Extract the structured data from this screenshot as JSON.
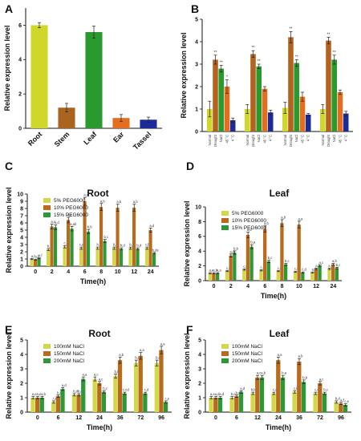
{
  "colors": {
    "yellow": "#cfd82a",
    "brown": "#b3631f",
    "green": "#2a9a2f",
    "orange": "#e46d1f",
    "blue": "#1d2b9a",
    "peg_light": "#d2d84a",
    "peg_mid": "#b86b1f",
    "peg_dark": "#2f9836"
  },
  "chart_data": [
    {
      "panel": "A",
      "type": "bar",
      "ylabel": "Relative expression level",
      "ylim": [
        0,
        7
      ],
      "yticks": [
        0,
        2,
        4,
        6
      ],
      "categories": [
        "Root",
        "Stem",
        "Leaf",
        "Ear",
        "Tassel"
      ],
      "values": [
        6.0,
        1.2,
        5.6,
        0.6,
        0.5
      ],
      "errors": [
        0.15,
        0.25,
        0.35,
        0.2,
        0.15
      ],
      "bar_colors": [
        "#cfd82a",
        "#a9641f",
        "#2a9a2f",
        "#e46d1f",
        "#1d2b9a"
      ]
    },
    {
      "panel": "B",
      "type": "bar",
      "ylabel": "Relative expression level",
      "ylim": [
        0,
        5
      ],
      "yticks": [
        0,
        1,
        2,
        3,
        4,
        5
      ],
      "categories": [
        "Normal",
        "Drought",
        "NaCl",
        "45 °C",
        "4 °C"
      ],
      "bar_colors": [
        "#cfd82a",
        "#b3631f",
        "#2a9a2f",
        "#e46d1f",
        "#1d2b9a"
      ],
      "groups": [
        {
          "values": [
            1.0,
            3.2,
            2.8,
            2.0,
            0.5
          ],
          "errors": [
            0.35,
            0.2,
            0.15,
            0.3,
            0.1
          ],
          "marks": [
            "",
            "**",
            "**",
            "*",
            ""
          ]
        },
        {
          "values": [
            1.0,
            3.45,
            2.9,
            1.9,
            0.85
          ],
          "errors": [
            0.2,
            0.15,
            0.1,
            0.1,
            0.1
          ],
          "marks": [
            "",
            "**",
            "**",
            "",
            ""
          ]
        },
        {
          "values": [
            1.05,
            4.2,
            3.05,
            1.55,
            0.75
          ],
          "errors": [
            0.25,
            0.25,
            0.15,
            0.2,
            0.05
          ],
          "marks": [
            "",
            "**",
            "**",
            "",
            ""
          ]
        },
        {
          "values": [
            1.0,
            4.05,
            3.2,
            1.75,
            0.8
          ],
          "errors": [
            0.2,
            0.15,
            0.2,
            0.1,
            0.1
          ],
          "marks": [
            "",
            "**",
            "**",
            "",
            ""
          ]
        }
      ]
    },
    {
      "panel": "C",
      "type": "bar",
      "title": "Root",
      "xlabel": "Time(h)",
      "ylabel": "Relative expression level",
      "ylim": [
        0,
        10
      ],
      "yticks": [
        0,
        1,
        2,
        3,
        4,
        5,
        6,
        7,
        8,
        9,
        10
      ],
      "categories": [
        "0",
        "2",
        "4",
        "6",
        "8",
        "10",
        "12",
        "24"
      ],
      "series": [
        {
          "name": "5% PEG6000",
          "values": [
            1.0,
            2.3,
            2.7,
            2.5,
            2.5,
            2.5,
            2.5,
            2.5
          ],
          "labels": [
            "a,f",
            "b,b",
            "c,b",
            "c,ab",
            "b,c",
            "b,a",
            "b,a",
            "c,bc"
          ]
        },
        {
          "name": "10% PEG6000",
          "values": [
            0.9,
            5.5,
            6.4,
            9.0,
            8.2,
            8.1,
            8.1,
            5.0
          ],
          "labels": [
            "a,f",
            "a,c",
            "a,c",
            "a,a",
            "a,b",
            "a,b",
            "a,b",
            "a,d"
          ]
        },
        {
          "name": "15% PEG6000",
          "values": [
            1.1,
            5.4,
            5.2,
            4.8,
            3.5,
            2.4,
            2.4,
            1.8
          ],
          "labels": [
            "a,f",
            "a,d",
            "a,ab",
            "b,b",
            "b,c",
            "b,d",
            "b,d",
            "b,de"
          ]
        }
      ],
      "series_colors": [
        "#d2d84a",
        "#b86b1f",
        "#2f9836"
      ]
    },
    {
      "panel": "D",
      "type": "bar",
      "title": "Leaf",
      "xlabel": "Time(h)",
      "ylabel": "Relative expression level",
      "ylim": [
        0,
        10
      ],
      "yticks": [
        0,
        2,
        4,
        6,
        8,
        10
      ],
      "categories": [
        "0",
        "2",
        "4",
        "6",
        "8",
        "10",
        "12",
        "24"
      ],
      "series": [
        {
          "name": "5% PEG6000",
          "values": [
            1.0,
            1.3,
            1.5,
            1.4,
            1.3,
            1.2,
            1.1,
            1.6
          ],
          "labels": [
            "a,e",
            "c,e",
            "c,d",
            "c,c",
            "c,c",
            "c,d",
            "a,f",
            "a,b"
          ]
        },
        {
          "name": "10% PEG6000",
          "values": [
            1.0,
            3.4,
            6.2,
            7.0,
            7.8,
            7.6,
            1.6,
            2.2
          ],
          "labels": [
            "a,b",
            "a,d",
            "a,d",
            "a,b",
            "a,b",
            "a,a",
            "a,f",
            "a,b"
          ]
        },
        {
          "name": "15% PEG6000",
          "values": [
            1.0,
            3.8,
            4.6,
            2.6,
            2.2,
            1.1,
            2.0,
            1.7
          ],
          "labels": [
            "a,a",
            "b,b",
            "b,a",
            "b,c",
            "b,c",
            "c,d",
            "a,c",
            "b,c"
          ]
        }
      ],
      "series_colors": [
        "#d2d84a",
        "#b86b1f",
        "#2f9836"
      ]
    },
    {
      "panel": "E",
      "type": "bar",
      "title": "Root",
      "xlabel": "Time(h)",
      "ylabel": "Relative expression level",
      "ylim": [
        0,
        5
      ],
      "yticks": [
        0,
        1,
        2,
        3,
        4,
        5
      ],
      "categories": [
        "0",
        "6",
        "12",
        "24",
        "36",
        "72",
        "96"
      ],
      "series": [
        {
          "name": "100mM NaCl",
          "values": [
            1.0,
            0.7,
            1.2,
            2.3,
            2.5,
            3.4,
            3.4
          ],
          "labels": [
            "a,e",
            "c,e",
            "b,d",
            "a,c",
            "b,b",
            "b,a",
            "b,a"
          ]
        },
        {
          "name": "150mM NaCl",
          "values": [
            1.0,
            1.1,
            1.2,
            2.0,
            3.6,
            3.9,
            4.3
          ],
          "labels": [
            "a,e",
            "b,d",
            "b,d",
            "a,c",
            "a,b",
            "a,a",
            "a,a"
          ]
        },
        {
          "name": "200mM NaCl",
          "values": [
            1.0,
            1.6,
            2.3,
            1.4,
            1.3,
            1.3,
            0.7
          ],
          "labels": [
            "a,b",
            "a,d",
            "a,a",
            "b,c",
            "c,cd",
            "c,d",
            "c,e"
          ]
        }
      ],
      "series_colors": [
        "#d2d84a",
        "#b86b1f",
        "#2f9836"
      ]
    },
    {
      "panel": "F",
      "type": "bar",
      "title": "Leaf",
      "xlabel": "Time(h)",
      "ylabel": "Relative expression level",
      "ylim": [
        0,
        5
      ],
      "yticks": [
        0,
        1,
        2,
        3,
        4,
        5
      ],
      "categories": [
        "0",
        "6",
        "12",
        "24",
        "36",
        "72",
        "96"
      ],
      "series": [
        {
          "name": "100mM NaCl",
          "values": [
            1.0,
            1.0,
            1.3,
            1.3,
            1.4,
            1.3,
            0.7
          ],
          "labels": [
            "a,e",
            "b,e",
            "b,bc",
            "c,a",
            "c,b",
            "c,c",
            "b,d"
          ]
        },
        {
          "name": "150mM NaCl",
          "values": [
            1.0,
            1.1,
            2.4,
            3.6,
            3.5,
            2.0,
            0.6
          ],
          "labels": [
            "a,d",
            "b,d",
            "a,c",
            "a,a",
            "a,b",
            "a,c",
            "a,f"
          ]
        },
        {
          "name": "200mM NaCl",
          "values": [
            1.0,
            1.4,
            2.4,
            2.4,
            2.1,
            1.3,
            0.5
          ],
          "labels": [
            "a,d",
            "a,d",
            "a,b",
            "b,a",
            "b,b",
            "b,c",
            "c,e"
          ]
        }
      ],
      "series_colors": [
        "#d2d84a",
        "#b86b1f",
        "#2f9836"
      ]
    }
  ]
}
